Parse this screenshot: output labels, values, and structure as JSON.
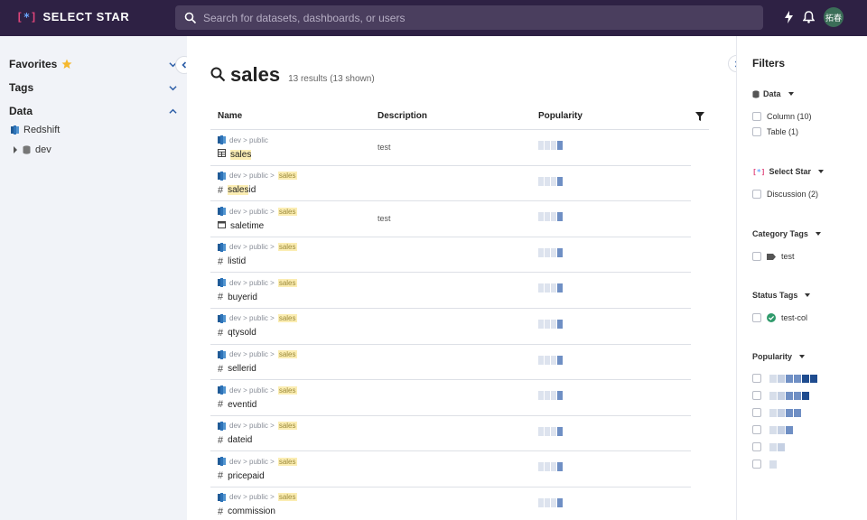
{
  "app": {
    "name": "SELECT STAR"
  },
  "search": {
    "placeholder": "Search for datasets, dashboards, or users"
  },
  "user": {
    "initials": "拓春"
  },
  "sidebar": {
    "favorites": "Favorites",
    "tags": "Tags",
    "data": "Data",
    "redshift": "Redshift",
    "dev": "dev"
  },
  "main": {
    "query": "sales",
    "count": "13 results (13 shown)",
    "headers": {
      "name": "Name",
      "description": "Description",
      "popularity": "Popularity"
    },
    "rows": [
      {
        "path": "dev > public",
        "path_hl": "",
        "name_hl": "sales",
        "name_rest": "",
        "icon": "table-icon",
        "desc": "test",
        "pop": 1
      },
      {
        "path": "dev > public >",
        "path_hl": "sales",
        "name_hl": "sales",
        "name_rest": "id",
        "icon": "hash-icon",
        "desc": "",
        "pop": 1
      },
      {
        "path": "dev > public >",
        "path_hl": "sales",
        "name_hl": "",
        "name_rest": "saletime",
        "icon": "calendar-icon",
        "desc": "test",
        "pop": 1
      },
      {
        "path": "dev > public >",
        "path_hl": "sales",
        "name_hl": "",
        "name_rest": "listid",
        "icon": "hash-icon",
        "desc": "",
        "pop": 1
      },
      {
        "path": "dev > public >",
        "path_hl": "sales",
        "name_hl": "",
        "name_rest": "buyerid",
        "icon": "hash-icon",
        "desc": "",
        "pop": 1
      },
      {
        "path": "dev > public >",
        "path_hl": "sales",
        "name_hl": "",
        "name_rest": "qtysold",
        "icon": "hash-icon",
        "desc": "",
        "pop": 1
      },
      {
        "path": "dev > public >",
        "path_hl": "sales",
        "name_hl": "",
        "name_rest": "sellerid",
        "icon": "hash-icon",
        "desc": "",
        "pop": 1
      },
      {
        "path": "dev > public >",
        "path_hl": "sales",
        "name_hl": "",
        "name_rest": "eventid",
        "icon": "hash-icon",
        "desc": "",
        "pop": 1
      },
      {
        "path": "dev > public >",
        "path_hl": "sales",
        "name_hl": "",
        "name_rest": "dateid",
        "icon": "hash-icon",
        "desc": "",
        "pop": 1
      },
      {
        "path": "dev > public >",
        "path_hl": "sales",
        "name_hl": "",
        "name_rest": "pricepaid",
        "icon": "hash-icon",
        "desc": "",
        "pop": 1
      },
      {
        "path": "dev > public >",
        "path_hl": "sales",
        "name_hl": "",
        "name_rest": "commission",
        "icon": "hash-icon",
        "desc": "",
        "pop": 1
      }
    ]
  },
  "filters": {
    "title": "Filters",
    "data_label": "Data",
    "column": "Column (10)",
    "table": "Table (1)",
    "selectstar_label": "Select Star",
    "discussion": "Discussion (2)",
    "category_label": "Category Tags",
    "category_test": "test",
    "status_label": "Status Tags",
    "status_testcol": "test-col",
    "popularity_label": "Popularity",
    "popularity_levels": [
      6,
      5,
      4,
      3,
      2,
      1
    ]
  },
  "colors": {
    "topbar": "#2e2144",
    "highlight": "#fbedb3",
    "pop_filled": "#6f8fc4"
  }
}
